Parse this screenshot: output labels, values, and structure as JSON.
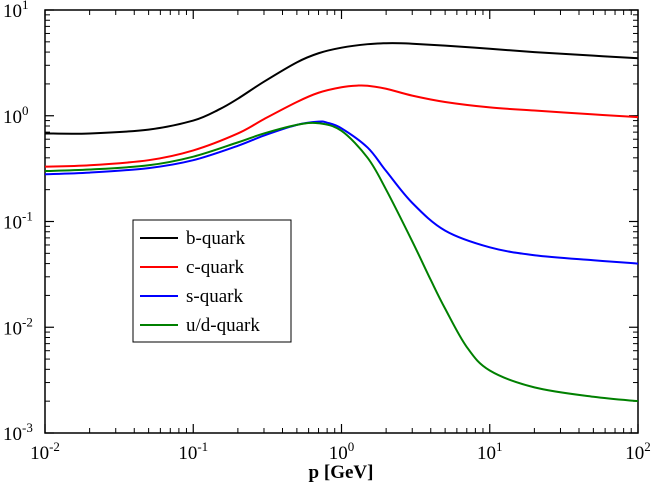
{
  "chart_data": {
    "type": "line",
    "title": "",
    "xlabel": "p [GeV]",
    "ylabel": "",
    "xscale": "log",
    "yscale": "log",
    "xlim": [
      0.01,
      100
    ],
    "ylim": [
      0.001,
      10
    ],
    "x_ticks": [
      {
        "base": "10",
        "exp": "-2"
      },
      {
        "base": "10",
        "exp": "-1"
      },
      {
        "base": "10",
        "exp": "0"
      },
      {
        "base": "10",
        "exp": "1"
      },
      {
        "base": "10",
        "exp": "2"
      }
    ],
    "y_ticks": [
      {
        "base": "10",
        "exp": "-3"
      },
      {
        "base": "10",
        "exp": "-2"
      },
      {
        "base": "10",
        "exp": "-1"
      },
      {
        "base": "10",
        "exp": "0"
      },
      {
        "base": "10",
        "exp": "1"
      }
    ],
    "grid": false,
    "legend_position": "center-left",
    "series": [
      {
        "name": "b-quark",
        "color": "#000000",
        "x": [
          0.01,
          0.02,
          0.05,
          0.1,
          0.15,
          0.2,
          0.3,
          0.5,
          0.7,
          1,
          1.5,
          2,
          2.5,
          3,
          5,
          10,
          20,
          50,
          100
        ],
        "y": [
          0.68,
          0.68,
          0.74,
          0.9,
          1.15,
          1.45,
          2.1,
          3.2,
          3.9,
          4.4,
          4.75,
          4.85,
          4.85,
          4.8,
          4.6,
          4.3,
          4.0,
          3.7,
          3.5
        ]
      },
      {
        "name": "c-quark",
        "color": "#ff0000",
        "x": [
          0.01,
          0.02,
          0.05,
          0.1,
          0.2,
          0.3,
          0.5,
          0.7,
          1,
          1.3,
          1.5,
          2,
          3,
          5,
          10,
          20,
          50,
          100
        ],
        "y": [
          0.33,
          0.34,
          0.38,
          0.47,
          0.68,
          0.93,
          1.35,
          1.65,
          1.86,
          1.93,
          1.92,
          1.8,
          1.55,
          1.35,
          1.2,
          1.12,
          1.03,
          0.97
        ]
      },
      {
        "name": "s-quark",
        "color": "#0000ff",
        "x": [
          0.01,
          0.02,
          0.05,
          0.1,
          0.2,
          0.3,
          0.5,
          0.7,
          0.8,
          1,
          1.5,
          2,
          3,
          5,
          10,
          20,
          50,
          100
        ],
        "y": [
          0.28,
          0.29,
          0.32,
          0.38,
          0.52,
          0.65,
          0.82,
          0.88,
          0.86,
          0.76,
          0.5,
          0.3,
          0.15,
          0.082,
          0.057,
          0.048,
          0.043,
          0.04
        ]
      },
      {
        "name": "u/d-quark",
        "color": "#008000",
        "x": [
          0.01,
          0.02,
          0.05,
          0.1,
          0.2,
          0.3,
          0.5,
          0.7,
          1,
          1.5,
          2,
          3,
          4,
          5,
          7,
          10,
          20,
          50,
          100
        ],
        "y": [
          0.3,
          0.31,
          0.34,
          0.41,
          0.56,
          0.68,
          0.82,
          0.85,
          0.72,
          0.4,
          0.2,
          0.065,
          0.028,
          0.015,
          0.0065,
          0.0039,
          0.0027,
          0.0022,
          0.002
        ]
      }
    ]
  }
}
